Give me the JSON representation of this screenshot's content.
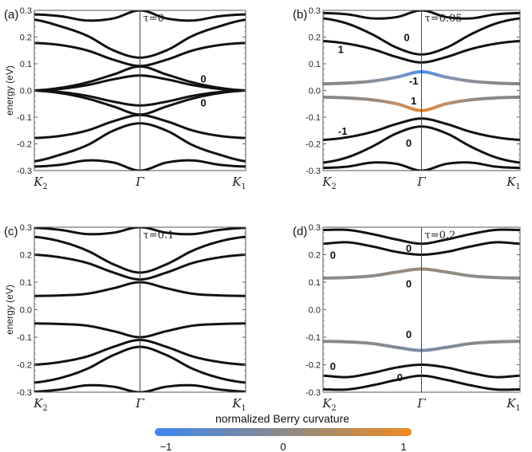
{
  "chart_data": [
    {
      "type": "line",
      "panel_label": "(a)",
      "tau_label": "τ=0",
      "ylabel": "energy (eV)",
      "ylim": [
        -0.3,
        0.3
      ],
      "yticks": [
        "0.3",
        "0.2",
        "0.1",
        "0.0",
        "-0.1",
        "-0.2",
        "-0.3"
      ],
      "xticks": [
        {
          "label": "K",
          "sub": "2"
        },
        {
          "label": "Γ",
          "sub": ""
        },
        {
          "label": "K",
          "sub": "1"
        }
      ],
      "x": [
        -1,
        -0.75,
        -0.5,
        -0.25,
        0,
        0.25,
        0.5,
        0.75,
        1
      ],
      "series": [
        {
          "color": "#111111",
          "values": [
            0.285,
            0.278,
            0.262,
            0.27,
            0.3,
            0.27,
            0.262,
            0.278,
            0.285
          ]
        },
        {
          "color": "#111111",
          "values": [
            0.265,
            0.24,
            0.205,
            0.15,
            0.123,
            0.15,
            0.205,
            0.24,
            0.265
          ]
        },
        {
          "color": "#111111",
          "values": [
            0.178,
            0.17,
            0.15,
            0.115,
            0.092,
            0.115,
            0.15,
            0.17,
            0.178
          ]
        },
        {
          "color": "#111111",
          "values": [
            0.0,
            0.01,
            0.03,
            0.06,
            0.09,
            0.06,
            0.03,
            0.01,
            0.0
          ]
        },
        {
          "color": "#111111",
          "values": [
            0.0,
            0.006,
            0.02,
            0.042,
            0.056,
            0.042,
            0.02,
            0.006,
            0.0
          ]
        },
        {
          "color": "#111111",
          "values": [
            0.0,
            -0.006,
            -0.02,
            -0.042,
            -0.056,
            -0.042,
            -0.02,
            -0.006,
            0.0
          ]
        },
        {
          "color": "#111111",
          "values": [
            0.0,
            -0.01,
            -0.03,
            -0.06,
            -0.09,
            -0.06,
            -0.03,
            -0.01,
            0.0
          ]
        },
        {
          "color": "#111111",
          "values": [
            -0.178,
            -0.17,
            -0.15,
            -0.115,
            -0.092,
            -0.115,
            -0.15,
            -0.17,
            -0.178
          ]
        },
        {
          "color": "#111111",
          "values": [
            -0.265,
            -0.24,
            -0.205,
            -0.15,
            -0.123,
            -0.15,
            -0.205,
            -0.24,
            -0.265
          ]
        },
        {
          "color": "#111111",
          "values": [
            -0.285,
            -0.278,
            -0.262,
            -0.27,
            -0.3,
            -0.27,
            -0.262,
            -0.278,
            -0.285
          ]
        }
      ],
      "annotations": [
        {
          "text": "0",
          "x": 0.6,
          "y": 0.045
        },
        {
          "text": "0",
          "x": 0.6,
          "y": -0.045
        }
      ]
    },
    {
      "type": "line",
      "panel_label": "(b)",
      "tau_label": "τ=0.05",
      "ylabel": "",
      "ylim": [
        -0.3,
        0.3
      ],
      "yticks": [
        "0.3",
        "0.2",
        "0.1",
        "0.0",
        "-0.1",
        "-0.2",
        "-0.3"
      ],
      "xticks": [
        {
          "label": "K",
          "sub": "2"
        },
        {
          "label": "Γ",
          "sub": ""
        },
        {
          "label": "K",
          "sub": "1"
        }
      ],
      "x": [
        -1,
        -0.75,
        -0.5,
        -0.25,
        0,
        0.25,
        0.5,
        0.75,
        1
      ],
      "series": [
        {
          "color": "#111111",
          "values": [
            0.29,
            0.285,
            0.27,
            0.275,
            0.3,
            0.275,
            0.27,
            0.285,
            0.29
          ]
        },
        {
          "color": "#111111",
          "values": [
            0.27,
            0.25,
            0.21,
            0.16,
            0.135,
            0.16,
            0.21,
            0.25,
            0.27
          ]
        },
        {
          "color": "#111111",
          "values": [
            0.185,
            0.175,
            0.155,
            0.125,
            0.105,
            0.125,
            0.155,
            0.175,
            0.185
          ]
        },
        {
          "colors": [
            "#888888",
            "#888888",
            "#8a8e99",
            "#7f93bd",
            "#4f8ee8",
            "#7f93bd",
            "#8a8e99",
            "#888888",
            "#888888"
          ],
          "values": [
            0.025,
            0.028,
            0.035,
            0.05,
            0.07,
            0.05,
            0.035,
            0.028,
            0.025
          ]
        },
        {
          "colors": [
            "#888888",
            "#888888",
            "#998a7f",
            "#bd9070",
            "#e0882e",
            "#bd9070",
            "#998a7f",
            "#888888",
            "#888888"
          ],
          "values": [
            -0.025,
            -0.028,
            -0.035,
            -0.05,
            -0.075,
            -0.05,
            -0.035,
            -0.028,
            -0.025
          ]
        },
        {
          "color": "#111111",
          "values": [
            -0.185,
            -0.175,
            -0.155,
            -0.125,
            -0.105,
            -0.125,
            -0.155,
            -0.175,
            -0.185
          ]
        },
        {
          "color": "#111111",
          "values": [
            -0.27,
            -0.25,
            -0.21,
            -0.16,
            -0.135,
            -0.16,
            -0.21,
            -0.25,
            -0.27
          ]
        },
        {
          "color": "#111111",
          "values": [
            -0.29,
            -0.285,
            -0.27,
            -0.275,
            -0.3,
            -0.275,
            -0.27,
            -0.285,
            -0.29
          ]
        }
      ],
      "annotations": [
        {
          "text": "0",
          "x": -0.15,
          "y": 0.2
        },
        {
          "text": "1",
          "x": -0.82,
          "y": 0.155
        },
        {
          "text": "-1",
          "x": -0.08,
          "y": 0.038
        },
        {
          "text": "1",
          "x": -0.08,
          "y": -0.037
        },
        {
          "text": "-1",
          "x": -0.8,
          "y": -0.15
        },
        {
          "text": "0",
          "x": -0.13,
          "y": -0.195
        }
      ]
    },
    {
      "type": "line",
      "panel_label": "(c)",
      "tau_label": "τ=0.1",
      "ylabel": "energy (eV)",
      "ylim": [
        -0.3,
        0.3
      ],
      "yticks": [
        "0.3",
        "0.2",
        "0.1",
        "0.0",
        "-0.1",
        "-0.2",
        "-0.3"
      ],
      "xticks": [
        {
          "label": "K",
          "sub": "2"
        },
        {
          "label": "Γ",
          "sub": ""
        },
        {
          "label": "K",
          "sub": "1"
        }
      ],
      "x": [
        -1,
        -0.75,
        -0.5,
        -0.25,
        0,
        0.25,
        0.5,
        0.75,
        1
      ],
      "series": [
        {
          "color": "#111111",
          "values": [
            0.298,
            0.29,
            0.275,
            0.28,
            0.3,
            0.28,
            0.275,
            0.29,
            0.298
          ]
        },
        {
          "color": "#111111",
          "values": [
            0.265,
            0.248,
            0.215,
            0.165,
            0.135,
            0.165,
            0.215,
            0.248,
            0.265
          ]
        },
        {
          "color": "#111111",
          "values": [
            0.2,
            0.19,
            0.17,
            0.135,
            0.11,
            0.135,
            0.17,
            0.19,
            0.2
          ]
        },
        {
          "color": "#111111",
          "values": [
            0.05,
            0.052,
            0.058,
            0.078,
            0.1,
            0.078,
            0.058,
            0.052,
            0.05
          ]
        },
        {
          "color": "#111111",
          "values": [
            -0.05,
            -0.052,
            -0.058,
            -0.078,
            -0.1,
            -0.078,
            -0.058,
            -0.052,
            -0.05
          ]
        },
        {
          "color": "#111111",
          "values": [
            -0.2,
            -0.19,
            -0.17,
            -0.135,
            -0.11,
            -0.135,
            -0.17,
            -0.19,
            -0.2
          ]
        },
        {
          "color": "#111111",
          "values": [
            -0.265,
            -0.248,
            -0.215,
            -0.165,
            -0.135,
            -0.165,
            -0.215,
            -0.248,
            -0.265
          ]
        },
        {
          "color": "#111111",
          "values": [
            -0.298,
            -0.29,
            -0.275,
            -0.28,
            -0.3,
            -0.28,
            -0.275,
            -0.29,
            -0.298
          ]
        }
      ],
      "annotations": []
    },
    {
      "type": "line",
      "panel_label": "(d)",
      "tau_label": "τ=0.2",
      "ylabel": "",
      "ylim": [
        -0.3,
        0.3
      ],
      "yticks": [
        "0.3",
        "0.2",
        "0.1",
        "0.0",
        "-0.1",
        "-0.2",
        "-0.3"
      ],
      "xticks": [
        {
          "label": "K",
          "sub": "2"
        },
        {
          "label": "Γ",
          "sub": ""
        },
        {
          "label": "K",
          "sub": "1"
        }
      ],
      "x": [
        -1,
        -0.75,
        -0.5,
        -0.25,
        0,
        0.25,
        0.5,
        0.75,
        1
      ],
      "series": [
        {
          "color": "#111111",
          "values": [
            0.29,
            0.29,
            0.275,
            0.255,
            0.24,
            0.255,
            0.275,
            0.29,
            0.29
          ]
        },
        {
          "color": "#111111",
          "values": [
            0.24,
            0.245,
            0.23,
            0.21,
            0.2,
            0.21,
            0.23,
            0.245,
            0.24
          ]
        },
        {
          "colors": [
            "#8a8a8a",
            "#8a8a8a",
            "#8c8b88",
            "#928a80",
            "#9b8a78",
            "#928a80",
            "#8c8b88",
            "#8a8a8a",
            "#8a8a8a"
          ],
          "values": [
            0.115,
            0.117,
            0.123,
            0.137,
            0.148,
            0.137,
            0.123,
            0.117,
            0.115
          ]
        },
        {
          "colors": [
            "#8a8a8a",
            "#8a8a8a",
            "#88898d",
            "#808a98",
            "#7a8bab",
            "#808a98",
            "#88898d",
            "#8a8a8a",
            "#8a8a8a"
          ],
          "values": [
            -0.115,
            -0.117,
            -0.123,
            -0.137,
            -0.148,
            -0.137,
            -0.123,
            -0.117,
            -0.115
          ]
        },
        {
          "color": "#111111",
          "values": [
            -0.24,
            -0.245,
            -0.23,
            -0.21,
            -0.2,
            -0.21,
            -0.23,
            -0.245,
            -0.24
          ]
        },
        {
          "color": "#111111",
          "values": [
            -0.29,
            -0.29,
            -0.275,
            -0.255,
            -0.24,
            -0.255,
            -0.275,
            -0.29,
            -0.29
          ]
        }
      ],
      "annotations": [
        {
          "text": "0",
          "x": -0.13,
          "y": 0.225
        },
        {
          "text": "0",
          "x": -0.9,
          "y": 0.2
        },
        {
          "text": "0",
          "x": -0.13,
          "y": 0.095
        },
        {
          "text": "0",
          "x": -0.13,
          "y": -0.088
        },
        {
          "text": "0",
          "x": -0.9,
          "y": -0.205
        },
        {
          "text": "0",
          "x": -0.22,
          "y": -0.245
        }
      ]
    }
  ],
  "colorbar": {
    "title": "normalized Berry curvature",
    "ticks": [
      "−1",
      "0",
      "1"
    ],
    "colors": [
      "#3f86f2",
      "#8a8a8a",
      "#ee8a22"
    ]
  }
}
